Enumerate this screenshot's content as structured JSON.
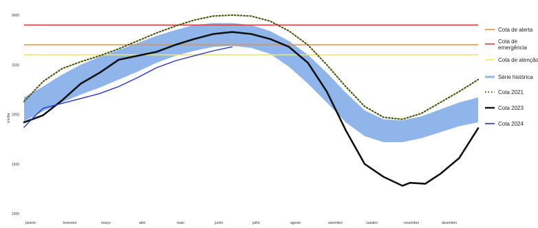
{
  "chart_data": {
    "type": "line",
    "title": "",
    "xlabel": "",
    "ylabel": "cm/dia",
    "ylim": [
      1000,
      3000
    ],
    "x_categories": [
      "janeiro",
      "fevereiro",
      "março",
      "abril",
      "maio",
      "junho",
      "julho",
      "agosto",
      "setembro",
      "outubro",
      "novembro",
      "dezembro"
    ],
    "y_ticks": [
      1000,
      1500,
      2000,
      2500,
      3000
    ],
    "y_tick_labels": [
      "1000",
      "1500",
      "2000",
      "2500",
      "3000"
    ],
    "x_domain": [
      0,
      12
    ],
    "grid": false,
    "legend_position": "right",
    "thresholds": [
      {
        "name": "Cota de alerta",
        "value": 2700,
        "color": "#e2943b"
      },
      {
        "name": "Cota de emergência",
        "value": 2900,
        "color": "#e0393e"
      },
      {
        "name": "Cota de atenção",
        "value": 2600,
        "color": "#f2ea4c"
      }
    ],
    "band": {
      "name": "Série histórica",
      "color": "#8fb5ea",
      "x": [
        0,
        0.5,
        1,
        1.5,
        2,
        2.5,
        3,
        3.5,
        4,
        4.5,
        5,
        5.5,
        6,
        6.5,
        7,
        7.5,
        8,
        8.5,
        9,
        9.5,
        10,
        10.5,
        11,
        11.5,
        12
      ],
      "upper": [
        2170,
        2280,
        2400,
        2500,
        2580,
        2650,
        2720,
        2790,
        2850,
        2900,
        2920,
        2920,
        2900,
        2840,
        2740,
        2600,
        2420,
        2220,
        2040,
        1950,
        1940,
        1980,
        2050,
        2120,
        2170
      ],
      "lower": [
        1930,
        2030,
        2120,
        2200,
        2270,
        2350,
        2430,
        2520,
        2590,
        2640,
        2680,
        2690,
        2670,
        2610,
        2480,
        2310,
        2120,
        1920,
        1780,
        1720,
        1720,
        1760,
        1820,
        1880,
        1920
      ]
    },
    "series": [
      {
        "name": "Cota 2021",
        "color": "#4a5a10",
        "style": "dotted",
        "x": [
          0,
          0.5,
          1,
          1.5,
          2,
          2.5,
          3,
          3.5,
          4,
          4.5,
          5,
          5.5,
          6,
          6.5,
          7,
          7.5,
          8,
          8.5,
          9,
          9.5,
          10,
          10.5,
          11,
          11.5,
          12
        ],
        "y": [
          2130,
          2330,
          2460,
          2530,
          2590,
          2660,
          2740,
          2820,
          2890,
          2950,
          2990,
          3000,
          2990,
          2940,
          2840,
          2700,
          2500,
          2280,
          2080,
          1970,
          1950,
          2010,
          2120,
          2230,
          2350
        ]
      },
      {
        "name": "Cota 2023",
        "color": "#111111",
        "style": "solid",
        "x": [
          0,
          0.5,
          1,
          1.5,
          2,
          2.5,
          3,
          3.5,
          4,
          4.5,
          5,
          5.5,
          6,
          6.5,
          7,
          7.5,
          8,
          8.5,
          9,
          9.5,
          10,
          10.2,
          10.6,
          11,
          11.5,
          12
        ],
        "y": [
          1920,
          1990,
          2140,
          2310,
          2420,
          2550,
          2590,
          2630,
          2700,
          2760,
          2810,
          2830,
          2810,
          2760,
          2680,
          2520,
          2230,
          1840,
          1500,
          1370,
          1280,
          1310,
          1300,
          1400,
          1560,
          1860
        ]
      },
      {
        "name": "Cota 2024",
        "color": "#2233c8",
        "style": "solid",
        "x": [
          0,
          0.25,
          0.5,
          1,
          1.5,
          2,
          2.5,
          3,
          3.5,
          4,
          4.5,
          5,
          5.5
        ],
        "y": [
          1870,
          1970,
          2060,
          2110,
          2160,
          2210,
          2280,
          2370,
          2470,
          2540,
          2590,
          2640,
          2680
        ]
      }
    ]
  }
}
